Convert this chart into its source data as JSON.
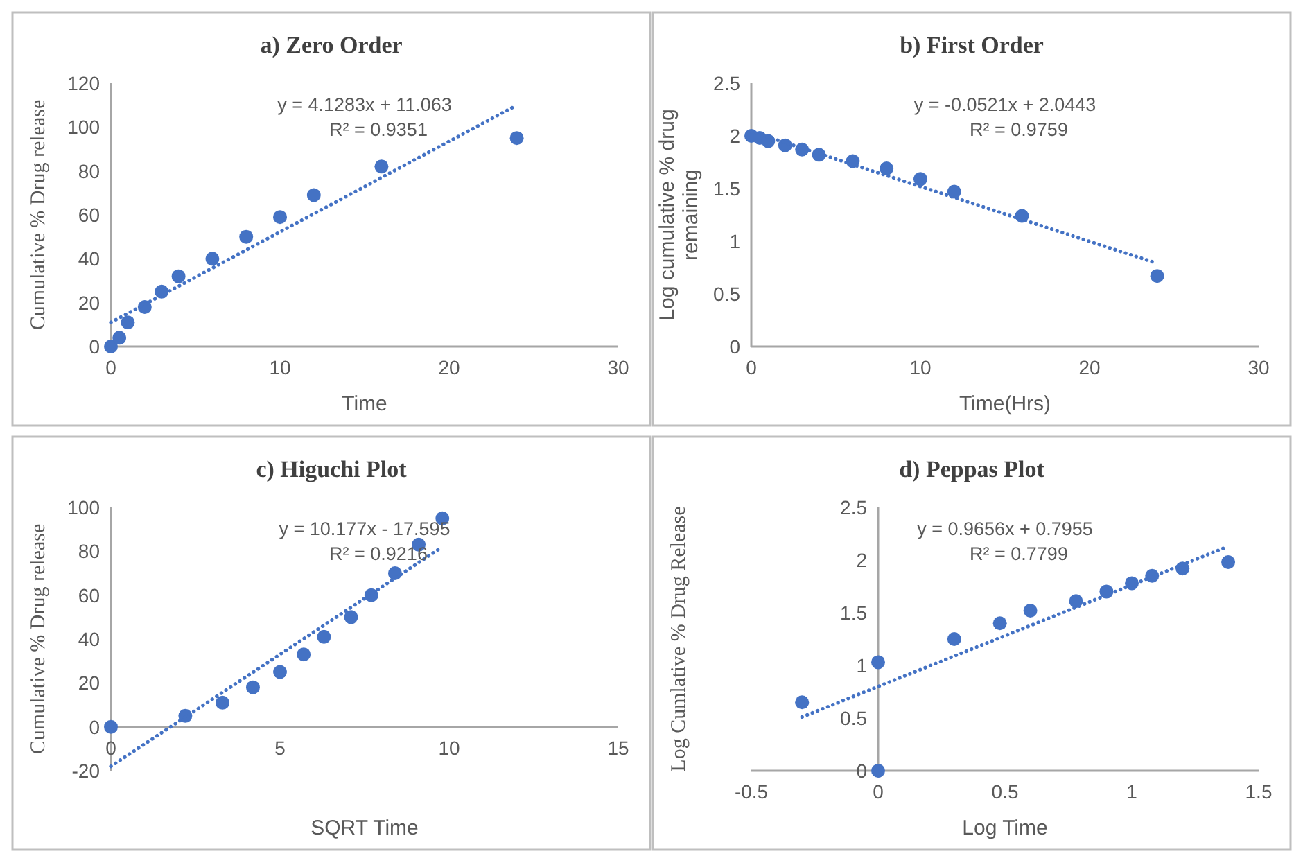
{
  "chart_data": [
    {
      "type": "scatter",
      "title": "a) Zero Order",
      "xlabel": "Time",
      "ylabel": "Cumulative % Drug release",
      "xlim": [
        0,
        30
      ],
      "xticks": [
        0,
        10,
        20,
        30
      ],
      "ylim": [
        0,
        120
      ],
      "yticks": [
        0,
        20,
        40,
        60,
        80,
        100,
        120
      ],
      "grid": false,
      "annotations": [
        "y = 4.1283x + 11.063",
        "R² = 0.9351"
      ],
      "series": [
        {
          "type": "scatter",
          "marker": "circle",
          "color": "#4472c4",
          "x": [
            0,
            0.5,
            1,
            2,
            3,
            4,
            6,
            8,
            10,
            12,
            16,
            24
          ],
          "values": [
            0,
            4,
            11,
            18,
            25,
            32,
            40,
            50,
            59,
            69,
            82,
            95
          ]
        },
        {
          "type": "line",
          "marker": "none",
          "line_style": "dotted",
          "color": "#4472c4",
          "x": [
            0,
            24
          ],
          "values": [
            11,
            110
          ]
        }
      ]
    },
    {
      "type": "scatter",
      "title": "b) First Order",
      "xlabel": "Time(Hrs)",
      "ylabel": "Log cumulative % drug remaining",
      "xlim": [
        0,
        30
      ],
      "xticks": [
        0,
        10,
        20,
        30
      ],
      "ylim": [
        0,
        2.5
      ],
      "yticks": [
        0,
        0.5,
        1,
        1.5,
        2,
        2.5
      ],
      "grid": false,
      "annotations": [
        "y = -0.0521x + 2.0443",
        "R² = 0.9759"
      ],
      "series": [
        {
          "type": "scatter",
          "marker": "circle",
          "color": "#4472c4",
          "x": [
            0,
            0.5,
            1,
            2,
            3,
            4,
            6,
            8,
            10,
            12,
            16,
            24
          ],
          "values": [
            2,
            1.98,
            1.95,
            1.91,
            1.87,
            1.82,
            1.76,
            1.69,
            1.59,
            1.47,
            1.24,
            0.67
          ]
        },
        {
          "type": "line",
          "marker": "none",
          "line_style": "dotted",
          "color": "#4472c4",
          "x": [
            0,
            24
          ],
          "values": [
            2.04,
            0.79
          ]
        }
      ]
    },
    {
      "type": "scatter",
      "title": "c) Higuchi Plot",
      "xlabel": "SQRT Time",
      "ylabel": "Cumulative % Drug release",
      "xlim": [
        0,
        15
      ],
      "xticks": [
        0,
        5,
        10,
        15
      ],
      "ylim": [
        -20,
        100
      ],
      "yticks": [
        -20,
        0,
        20,
        40,
        60,
        80,
        100
      ],
      "grid": false,
      "annotations": [
        "y = 10.177x - 17.595",
        "R² = 0.9216"
      ],
      "series": [
        {
          "type": "scatter",
          "marker": "circle",
          "color": "#4472c4",
          "x": [
            0,
            2.2,
            3.3,
            4.2,
            5,
            5.7,
            6.3,
            7.1,
            7.7,
            8.4,
            9.1,
            9.8
          ],
          "values": [
            0,
            5,
            11,
            18,
            25,
            33,
            41,
            50,
            60,
            70,
            83,
            95
          ]
        },
        {
          "type": "line",
          "marker": "none",
          "line_style": "dotted",
          "color": "#4472c4",
          "x": [
            0,
            9.8
          ],
          "values": [
            -18,
            82
          ]
        }
      ]
    },
    {
      "type": "scatter",
      "title": "d) Peppas Plot",
      "xlabel": "Log Time",
      "ylabel": "Log Cumlative % Drug Release",
      "xlim": [
        -0.5,
        1.5
      ],
      "xticks": [
        -0.5,
        0,
        0.5,
        1,
        1.5
      ],
      "ylim": [
        0,
        2.5
      ],
      "yticks": [
        0,
        0.5,
        1,
        1.5,
        2,
        2.5
      ],
      "grid": false,
      "annotations": [
        "y = 0.9656x + 0.7955",
        "R² = 0.7799"
      ],
      "series": [
        {
          "type": "scatter",
          "marker": "circle",
          "color": "#4472c4",
          "x": [
            -0.3,
            0,
            0,
            0.3,
            0.48,
            0.6,
            0.78,
            0.9,
            1,
            1.08,
            1.2,
            1.38
          ],
          "values": [
            0.65,
            1.03,
            0,
            1.25,
            1.4,
            1.52,
            1.61,
            1.7,
            1.78,
            1.85,
            1.92,
            1.98
          ]
        },
        {
          "type": "line",
          "marker": "none",
          "line_style": "dotted",
          "color": "#4472c4",
          "x": [
            -0.3,
            1.38
          ],
          "values": [
            0.51,
            2.13
          ]
        }
      ]
    }
  ]
}
